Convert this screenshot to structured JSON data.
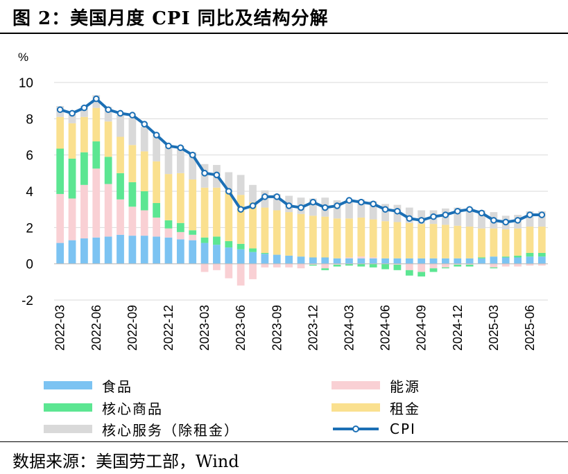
{
  "title": "图 2：美国月度 CPI 同比及结构分解",
  "source": "数据来源：美国劳工部，Wind",
  "chart_data": {
    "type": "stacked-bar+line",
    "ylabel": "%",
    "ylim": [
      -2,
      10
    ],
    "yticks": [
      -2,
      0,
      2,
      4,
      6,
      8,
      10
    ],
    "grid": true,
    "categories": [
      "2022-03",
      "2022-04",
      "2022-05",
      "2022-06",
      "2022-07",
      "2022-08",
      "2022-09",
      "2022-10",
      "2022-11",
      "2022-12",
      "2023-01",
      "2023-02",
      "2023-03",
      "2023-04",
      "2023-05",
      "2023-06",
      "2023-07",
      "2023-08",
      "2023-09",
      "2023-10",
      "2023-11",
      "2023-12",
      "2024-01",
      "2024-02",
      "2024-03",
      "2024-04",
      "2024-05",
      "2024-06",
      "2024-07",
      "2024-08",
      "2024-09",
      "2024-10",
      "2024-11",
      "2024-12",
      "2025-01",
      "2025-02",
      "2025-03",
      "2025-04",
      "2025-05",
      "2025-06",
      "2025-07"
    ],
    "tick_labels": [
      "2022-03",
      "2022-06",
      "2022-09",
      "2022-12",
      "2023-03",
      "2023-06",
      "2023-09",
      "2023-12",
      "2024-03",
      "2024-06",
      "2024-09",
      "2024-12",
      "2025-03",
      "2025-06"
    ],
    "series": [
      {
        "name": "食品",
        "color": "#7cc3f2",
        "values": [
          1.15,
          1.3,
          1.4,
          1.45,
          1.5,
          1.6,
          1.55,
          1.55,
          1.5,
          1.45,
          1.35,
          1.3,
          1.15,
          1.05,
          0.9,
          0.8,
          0.65,
          0.55,
          0.5,
          0.45,
          0.4,
          0.35,
          0.35,
          0.3,
          0.3,
          0.3,
          0.3,
          0.3,
          0.3,
          0.3,
          0.3,
          0.3,
          0.3,
          0.3,
          0.3,
          0.3,
          0.4,
          0.35,
          0.35,
          0.4,
          0.4
        ]
      },
      {
        "name": "能源",
        "color": "#f9d0d4",
        "values": [
          2.7,
          2.3,
          2.95,
          3.8,
          2.9,
          1.95,
          1.6,
          1.4,
          1.05,
          0.5,
          0.4,
          0.3,
          -0.45,
          -0.35,
          -0.8,
          -1.2,
          -0.85,
          -0.2,
          -0.2,
          -0.2,
          -0.25,
          -0.05,
          -0.25,
          -0.05,
          0.05,
          0.1,
          0.05,
          0.0,
          -0.05,
          -0.35,
          -0.45,
          -0.25,
          -0.2,
          -0.05,
          -0.05,
          0.0,
          -0.2,
          -0.15,
          -0.15,
          -0.1,
          -0.1
        ]
      },
      {
        "name": "核心商品",
        "color": "#5ce692",
        "values": [
          2.5,
          2.2,
          1.8,
          1.5,
          1.5,
          1.45,
          1.35,
          1.05,
          0.8,
          0.45,
          0.5,
          0.25,
          0.3,
          0.45,
          0.35,
          0.3,
          0.2,
          0.05,
          0.0,
          0.0,
          0.0,
          -0.05,
          -0.1,
          -0.1,
          -0.1,
          -0.15,
          -0.2,
          -0.3,
          -0.3,
          -0.3,
          -0.25,
          -0.2,
          -0.05,
          -0.1,
          -0.1,
          0.05,
          -0.05,
          0.05,
          0.1,
          0.2,
          0.2
        ]
      },
      {
        "name": "租金",
        "color": "#fae08f",
        "values": [
          1.75,
          1.95,
          1.95,
          1.85,
          1.95,
          2.0,
          2.05,
          2.2,
          2.3,
          2.55,
          2.75,
          2.8,
          2.75,
          2.7,
          2.7,
          2.7,
          2.55,
          2.5,
          2.45,
          2.4,
          2.35,
          2.3,
          2.25,
          2.2,
          2.15,
          2.15,
          2.1,
          2.05,
          2.0,
          1.95,
          1.9,
          1.9,
          1.85,
          1.8,
          1.75,
          1.6,
          1.55,
          1.5,
          1.5,
          1.45,
          1.45
        ]
      },
      {
        "name": "核心服务（除租金）",
        "color": "#d9d9d9",
        "values": [
          0.6,
          0.55,
          0.6,
          0.7,
          0.8,
          1.2,
          1.5,
          1.35,
          1.5,
          1.5,
          1.5,
          1.5,
          1.3,
          1.25,
          1.1,
          1.1,
          0.95,
          0.95,
          0.9,
          0.9,
          0.9,
          0.95,
          1.05,
          1.0,
          1.05,
          1.0,
          1.0,
          0.95,
          0.95,
          0.85,
          0.75,
          0.75,
          0.9,
          1.0,
          1.05,
          1.0,
          0.9,
          0.75,
          0.75,
          0.85,
          0.85
        ]
      }
    ],
    "line": {
      "name": "CPI",
      "color": "#1b6fb5",
      "values": [
        8.5,
        8.3,
        8.6,
        9.1,
        8.5,
        8.3,
        8.2,
        7.7,
        7.1,
        6.5,
        6.4,
        6.0,
        5.0,
        4.9,
        4.0,
        3.0,
        3.2,
        3.7,
        3.7,
        3.2,
        3.1,
        3.4,
        3.1,
        3.2,
        3.5,
        3.4,
        3.3,
        3.0,
        2.9,
        2.5,
        2.4,
        2.6,
        2.7,
        2.9,
        3.0,
        2.8,
        2.4,
        2.3,
        2.4,
        2.7,
        2.7
      ]
    }
  },
  "legend": [
    {
      "key": "food",
      "label": "食品",
      "kind": "bar",
      "color": "#7cc3f2"
    },
    {
      "key": "energy",
      "label": "能源",
      "kind": "bar",
      "color": "#f9d0d4"
    },
    {
      "key": "core_goods",
      "label": "核心商品",
      "kind": "bar",
      "color": "#5ce692"
    },
    {
      "key": "rent",
      "label": "租金",
      "kind": "bar",
      "color": "#fae08f"
    },
    {
      "key": "core_services",
      "label": "核心服务（除租金）",
      "kind": "bar",
      "color": "#d9d9d9"
    },
    {
      "key": "cpi",
      "label": "CPI",
      "kind": "line",
      "color": "#1b6fb5"
    }
  ]
}
